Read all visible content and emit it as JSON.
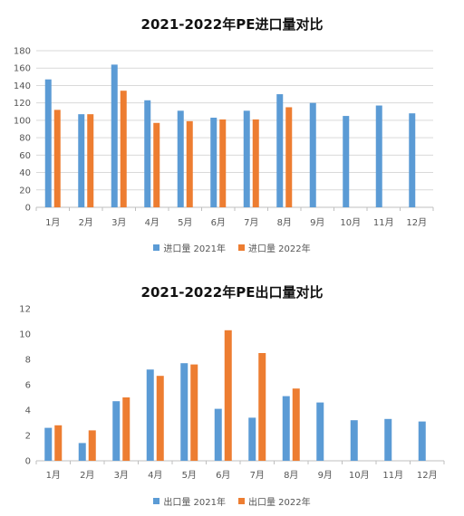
{
  "chart_data": [
    {
      "type": "bar",
      "title": "2021-2022年PE进口量对比",
      "categories": [
        "1月",
        "2月",
        "3月",
        "4月",
        "5月",
        "6月",
        "7月",
        "8月",
        "9月",
        "10月",
        "11月",
        "12月"
      ],
      "series": [
        {
          "name": "进口量 2021年",
          "color": "#5B9BD5",
          "values": [
            147,
            107,
            164,
            123,
            111,
            103,
            111,
            130,
            120,
            105,
            117,
            108
          ]
        },
        {
          "name": "进口量 2022年",
          "color": "#ED7D31",
          "values": [
            112,
            107,
            134,
            97,
            99,
            101,
            101,
            115,
            null,
            null,
            null,
            null
          ]
        }
      ],
      "ylim": [
        0,
        180
      ],
      "yticks": [
        0,
        20,
        40,
        60,
        80,
        100,
        120,
        140,
        160,
        180
      ],
      "grid": true,
      "legend": "bottom"
    },
    {
      "type": "bar",
      "title": "2021-2022年PE出口量对比",
      "categories": [
        "1月",
        "2月",
        "3月",
        "4月",
        "5月",
        "6月",
        "7月",
        "8月",
        "9月",
        "10月",
        "11月",
        "12月"
      ],
      "series": [
        {
          "name": "出口量 2021年",
          "color": "#5B9BD5",
          "values": [
            2.6,
            1.4,
            4.7,
            7.2,
            7.7,
            4.1,
            3.4,
            5.1,
            4.6,
            3.2,
            3.3,
            3.1
          ]
        },
        {
          "name": "出口量 2022年",
          "color": "#ED7D31",
          "values": [
            2.8,
            2.4,
            5.0,
            6.7,
            7.6,
            10.3,
            8.5,
            5.7,
            null,
            null,
            null,
            null
          ]
        }
      ],
      "ylim": [
        0,
        12
      ],
      "yticks": [
        0,
        2,
        4,
        6,
        8,
        10,
        12
      ],
      "grid": false,
      "legend": "bottom"
    }
  ]
}
